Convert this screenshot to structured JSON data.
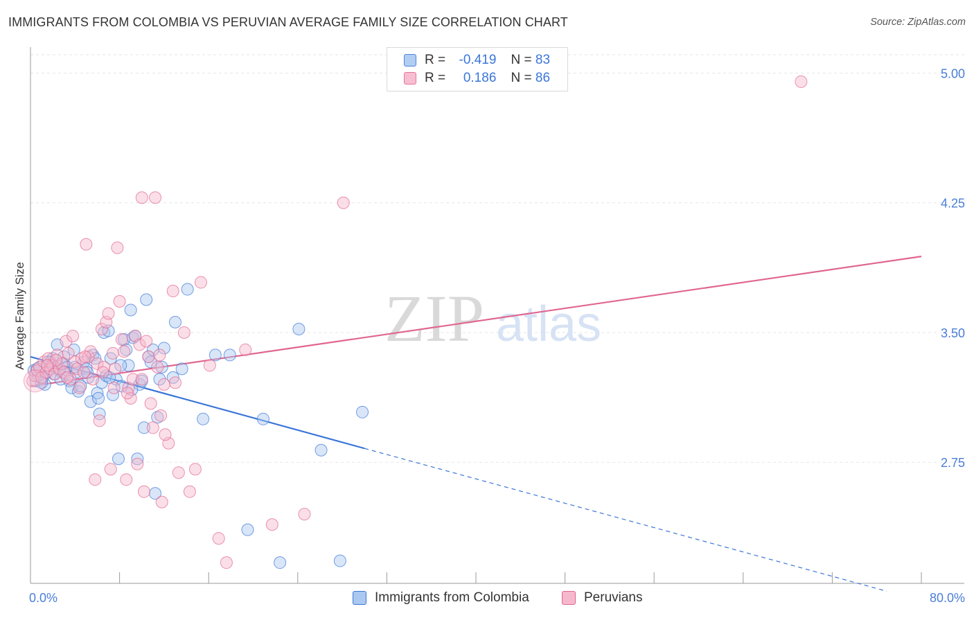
{
  "title": "IMMIGRANTS FROM COLOMBIA VS PERUVIAN AVERAGE FAMILY SIZE CORRELATION CHART",
  "source": "Source: ZipAtlas.com",
  "watermark": {
    "zip": "ZIP",
    "atlas": "atlas"
  },
  "colors": {
    "blue": "#3a76d8",
    "blue_fill": "#aac8f0",
    "pink": "#e0668f",
    "pink_fill": "#f6b8cc",
    "grid": "#e5e5e5",
    "tick_text": "#4a7ed8"
  },
  "legend": {
    "rows": [
      {
        "r_label": "R =",
        "r_value": "-0.419",
        "n_label": "N =",
        "n_value": "83",
        "series": "blue"
      },
      {
        "r_label": "R =",
        "r_value": " 0.186",
        "n_label": "N =",
        "n_value": "86",
        "series": "pink"
      }
    ]
  },
  "bottom_legend": [
    {
      "label": "Immigrants from Colombia",
      "series": "blue"
    },
    {
      "label": "Peruvians",
      "series": "pink"
    }
  ],
  "chart_data": {
    "type": "scatter",
    "title": "IMMIGRANTS FROM COLOMBIA VS PERUVIAN AVERAGE FAMILY SIZE CORRELATION CHART",
    "xlabel": "",
    "ylabel": "Average Family Size",
    "xlim": [
      0,
      80
    ],
    "ylim": [
      2.05,
      5.15
    ],
    "x_tick_labels": [
      "0.0%",
      "80.0%"
    ],
    "y_ticks": [
      2.75,
      3.5,
      4.25,
      5.0
    ],
    "y_tick_labels": [
      "2.75",
      "3.50",
      "4.25",
      "5.00"
    ],
    "grid": true,
    "series": [
      {
        "name": "Immigrants from Colombia",
        "color": "blue",
        "trend": {
          "x0": 0,
          "y0": 3.36,
          "x1": 30,
          "y1": 2.83,
          "dash_to_x": 80,
          "dash_to_y": 1.95
        },
        "points": [
          [
            0.3,
            3.28
          ],
          [
            0.5,
            3.22
          ],
          [
            0.7,
            3.25
          ],
          [
            0.9,
            3.3
          ],
          [
            1.1,
            3.24
          ],
          [
            1.3,
            3.2
          ],
          [
            1.5,
            3.27
          ],
          [
            1.8,
            3.33
          ],
          [
            2.0,
            3.35
          ],
          [
            2.2,
            3.3
          ],
          [
            2.4,
            3.43
          ],
          [
            2.6,
            3.28
          ],
          [
            2.9,
            3.32
          ],
          [
            3.1,
            3.26
          ],
          [
            3.3,
            3.3
          ],
          [
            3.5,
            3.22
          ],
          [
            3.7,
            3.18
          ],
          [
            3.9,
            3.4
          ],
          [
            4.1,
            3.27
          ],
          [
            4.3,
            3.16
          ],
          [
            4.5,
            3.19
          ],
          [
            4.8,
            3.33
          ],
          [
            5.0,
            3.29
          ],
          [
            5.2,
            3.24
          ],
          [
            5.4,
            3.1
          ],
          [
            5.6,
            3.37
          ],
          [
            5.8,
            3.35
          ],
          [
            6.0,
            3.15
          ],
          [
            6.2,
            3.03
          ],
          [
            6.4,
            3.21
          ],
          [
            6.6,
            3.5
          ],
          [
            6.8,
            3.25
          ],
          [
            7.0,
            3.51
          ],
          [
            7.2,
            3.35
          ],
          [
            7.4,
            3.14
          ],
          [
            7.7,
            3.23
          ],
          [
            7.9,
            2.77
          ],
          [
            8.2,
            3.19
          ],
          [
            8.4,
            3.46
          ],
          [
            8.6,
            3.4
          ],
          [
            8.8,
            3.31
          ],
          [
            9.0,
            3.63
          ],
          [
            9.2,
            3.47
          ],
          [
            9.4,
            3.48
          ],
          [
            9.6,
            2.77
          ],
          [
            9.8,
            3.2
          ],
          [
            10.0,
            3.22
          ],
          [
            10.2,
            2.95
          ],
          [
            10.4,
            3.69
          ],
          [
            10.6,
            3.36
          ],
          [
            10.8,
            3.33
          ],
          [
            11.0,
            3.4
          ],
          [
            11.2,
            2.57
          ],
          [
            11.4,
            3.01
          ],
          [
            11.6,
            3.23
          ],
          [
            11.8,
            3.3
          ],
          [
            12.0,
            3.41
          ],
          [
            12.8,
            3.24
          ],
          [
            13.0,
            3.56
          ],
          [
            13.6,
            3.29
          ],
          [
            14.1,
            3.75
          ],
          [
            15.5,
            3.0
          ],
          [
            16.6,
            3.37
          ],
          [
            17.9,
            3.37
          ],
          [
            19.5,
            2.36
          ],
          [
            20.9,
            3.0
          ],
          [
            22.4,
            2.17
          ],
          [
            24.1,
            3.52
          ],
          [
            26.1,
            2.82
          ],
          [
            27.8,
            2.18
          ],
          [
            29.8,
            3.04
          ],
          [
            1.0,
            3.21
          ],
          [
            2.1,
            3.26
          ],
          [
            3.0,
            3.36
          ],
          [
            4.0,
            3.3
          ],
          [
            5.1,
            3.27
          ],
          [
            6.1,
            3.12
          ],
          [
            7.1,
            3.24
          ],
          [
            8.1,
            3.31
          ],
          [
            9.1,
            3.17
          ],
          [
            0.6,
            3.29
          ],
          [
            1.6,
            3.33
          ],
          [
            2.7,
            3.23
          ]
        ]
      },
      {
        "name": "Peruvians",
        "color": "pink",
        "trend": {
          "x0": 0,
          "y0": 3.19,
          "x1": 80,
          "y1": 3.94
        },
        "points": [
          [
            0.2,
            3.22
          ],
          [
            0.4,
            3.25
          ],
          [
            0.6,
            3.28
          ],
          [
            0.8,
            3.3
          ],
          [
            1.0,
            3.24
          ],
          [
            1.2,
            3.33
          ],
          [
            1.4,
            3.27
          ],
          [
            1.6,
            3.35
          ],
          [
            1.8,
            3.29
          ],
          [
            2.0,
            3.31
          ],
          [
            2.2,
            3.26
          ],
          [
            2.4,
            3.37
          ],
          [
            2.6,
            3.29
          ],
          [
            2.8,
            3.32
          ],
          [
            3.0,
            3.27
          ],
          [
            3.2,
            3.45
          ],
          [
            3.4,
            3.38
          ],
          [
            3.6,
            3.23
          ],
          [
            3.8,
            3.48
          ],
          [
            4.0,
            3.33
          ],
          [
            4.2,
            3.29
          ],
          [
            4.4,
            3.18
          ],
          [
            4.6,
            3.35
          ],
          [
            4.8,
            3.27
          ],
          [
            5.0,
            4.01
          ],
          [
            5.2,
            3.36
          ],
          [
            5.4,
            3.39
          ],
          [
            5.6,
            3.23
          ],
          [
            5.8,
            2.65
          ],
          [
            6.0,
            3.32
          ],
          [
            6.2,
            2.99
          ],
          [
            6.4,
            3.52
          ],
          [
            6.6,
            3.3
          ],
          [
            6.8,
            3.56
          ],
          [
            7.0,
            3.61
          ],
          [
            7.2,
            2.71
          ],
          [
            7.4,
            3.38
          ],
          [
            7.6,
            3.29
          ],
          [
            7.8,
            3.99
          ],
          [
            8.0,
            3.68
          ],
          [
            8.2,
            3.46
          ],
          [
            8.4,
            3.39
          ],
          [
            8.6,
            2.65
          ],
          [
            8.8,
            3.18
          ],
          [
            9.0,
            3.12
          ],
          [
            9.2,
            3.23
          ],
          [
            9.4,
            3.48
          ],
          [
            9.6,
            2.74
          ],
          [
            9.8,
            3.43
          ],
          [
            10.0,
            3.23
          ],
          [
            10.2,
            2.58
          ],
          [
            10.4,
            3.45
          ],
          [
            10.6,
            3.36
          ],
          [
            10.8,
            3.09
          ],
          [
            11.0,
            2.95
          ],
          [
            11.2,
            4.28
          ],
          [
            11.4,
            3.3
          ],
          [
            11.6,
            3.37
          ],
          [
            11.8,
            2.52
          ],
          [
            12.0,
            3.2
          ],
          [
            12.4,
            2.86
          ],
          [
            12.8,
            3.74
          ],
          [
            13.3,
            2.69
          ],
          [
            13.8,
            3.5
          ],
          [
            14.3,
            2.58
          ],
          [
            14.8,
            2.71
          ],
          [
            15.3,
            3.79
          ],
          [
            16.1,
            3.31
          ],
          [
            16.9,
            2.31
          ],
          [
            17.6,
            2.17
          ],
          [
            19.3,
            3.4
          ],
          [
            21.7,
            2.39
          ],
          [
            24.6,
            2.45
          ],
          [
            28.1,
            4.25
          ],
          [
            69.2,
            4.95
          ],
          [
            10.0,
            4.28
          ],
          [
            7.5,
            3.18
          ],
          [
            2.3,
            3.34
          ],
          [
            4.9,
            3.36
          ],
          [
            6.5,
            3.27
          ],
          [
            3.3,
            3.24
          ],
          [
            1.5,
            3.31
          ],
          [
            8.7,
            3.15
          ],
          [
            11.7,
            3.02
          ],
          [
            12.1,
            2.91
          ],
          [
            13.0,
            3.21
          ]
        ]
      }
    ]
  }
}
